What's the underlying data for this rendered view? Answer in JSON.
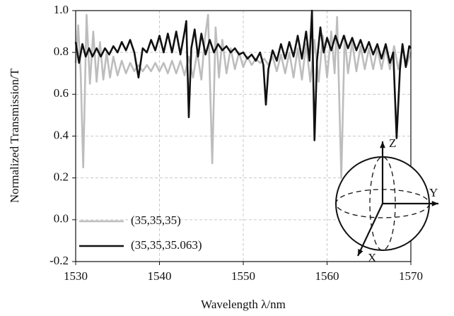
{
  "chart_data": {
    "type": "line",
    "x_label": "Wavelength λ/nm",
    "y_label": "Normalized Transmission/T",
    "xlim": [
      1530,
      1570
    ],
    "xticks": [
      1530,
      1540,
      1550,
      1560,
      1570
    ],
    "ylim": [
      -0.2,
      1.0
    ],
    "yticks": [
      -0.2,
      {
        "value": 0,
        "label": "0.0"
      },
      0.2,
      0.4,
      0.6,
      0.8,
      {
        "value": 1,
        "label": "1.0"
      }
    ],
    "grid": true,
    "legend": "lower left",
    "inset_axis_labels": [
      "X",
      "Y",
      "Z"
    ],
    "series": [
      {
        "name": "(35,35,35)",
        "color": "#bdbdbd",
        "x": [
          1530,
          1530.3,
          1530.6,
          1530.9,
          1531.3,
          1531.7,
          1532.1,
          1532.5,
          1532.9,
          1533.3,
          1533.7,
          1534.1,
          1534.5,
          1535,
          1535.5,
          1536,
          1536.5,
          1537,
          1537.5,
          1538,
          1538.5,
          1539,
          1539.5,
          1540,
          1540.5,
          1541,
          1541.5,
          1542,
          1542.5,
          1543,
          1543.5,
          1544,
          1544.5,
          1545,
          1545.4,
          1545.8,
          1546.3,
          1546.7,
          1547.1,
          1547.5,
          1548,
          1548.5,
          1549,
          1549.5,
          1550,
          1550.5,
          1551,
          1551.5,
          1552,
          1552.5,
          1553,
          1553.5,
          1554,
          1554.5,
          1555,
          1555.5,
          1556,
          1556.5,
          1557,
          1557.5,
          1558,
          1558.5,
          1559,
          1559.5,
          1560,
          1560.5,
          1560.9,
          1561.2,
          1561.7,
          1562.1,
          1562.5,
          1563,
          1563.5,
          1564,
          1564.5,
          1565,
          1565.5,
          1566,
          1566.5,
          1567,
          1567.5,
          1568,
          1568.5,
          1569,
          1569.5,
          1570
        ],
        "values": [
          0.75,
          0.93,
          0.7,
          0.25,
          0.98,
          0.65,
          0.9,
          0.66,
          0.85,
          0.67,
          0.8,
          0.68,
          0.78,
          0.69,
          0.76,
          0.7,
          0.75,
          0.71,
          0.74,
          0.71,
          0.74,
          0.71,
          0.75,
          0.71,
          0.75,
          0.7,
          0.76,
          0.7,
          0.76,
          0.69,
          0.78,
          0.68,
          0.8,
          0.67,
          0.86,
          0.98,
          0.27,
          0.92,
          0.68,
          0.86,
          0.7,
          0.82,
          0.72,
          0.8,
          0.73,
          0.78,
          0.74,
          0.77,
          0.75,
          0.77,
          0.74,
          0.78,
          0.71,
          0.79,
          0.7,
          0.8,
          0.68,
          0.82,
          0.67,
          0.84,
          0.66,
          0.86,
          0.66,
          0.88,
          0.68,
          0.9,
          0.7,
          0.97,
          0.2,
          0.88,
          0.7,
          0.85,
          0.71,
          0.83,
          0.72,
          0.82,
          0.72,
          0.82,
          0.72,
          0.82,
          0.72,
          0.83,
          0.72,
          0.82,
          0.74,
          0.8
        ]
      },
      {
        "name": "(35,35,35.063)",
        "color": "#111111",
        "x": [
          1530,
          1530.4,
          1530.8,
          1531.2,
          1531.6,
          1532,
          1532.5,
          1533,
          1533.5,
          1534,
          1534.5,
          1535,
          1535.5,
          1536,
          1536.5,
          1537,
          1537.5,
          1538,
          1538.5,
          1539,
          1539.5,
          1540,
          1540.5,
          1541,
          1541.5,
          1542,
          1542.5,
          1543,
          1543.2,
          1543.5,
          1543.8,
          1544.2,
          1544.6,
          1545,
          1545.5,
          1546,
          1546.5,
          1547,
          1547.5,
          1548,
          1548.5,
          1549,
          1549.5,
          1550,
          1550.5,
          1551,
          1551.5,
          1552,
          1552.4,
          1552.7,
          1553,
          1553.5,
          1554,
          1554.5,
          1555,
          1555.5,
          1556,
          1556.5,
          1557,
          1557.5,
          1557.9,
          1558.2,
          1558.5,
          1558.8,
          1559.2,
          1559.6,
          1560,
          1560.5,
          1561,
          1561.5,
          1562,
          1562.5,
          1563,
          1563.5,
          1564,
          1564.5,
          1565,
          1565.5,
          1566,
          1566.5,
          1567,
          1567.5,
          1567.9,
          1568.3,
          1568.7,
          1569,
          1569.4,
          1569.8,
          1570
        ],
        "values": [
          0.85,
          0.75,
          0.84,
          0.78,
          0.82,
          0.78,
          0.82,
          0.78,
          0.82,
          0.79,
          0.83,
          0.8,
          0.85,
          0.81,
          0.86,
          0.8,
          0.68,
          0.82,
          0.8,
          0.86,
          0.81,
          0.88,
          0.8,
          0.89,
          0.8,
          0.9,
          0.79,
          0.9,
          0.95,
          0.49,
          0.82,
          0.91,
          0.78,
          0.89,
          0.79,
          0.86,
          0.8,
          0.84,
          0.81,
          0.83,
          0.8,
          0.82,
          0.79,
          0.8,
          0.77,
          0.79,
          0.76,
          0.8,
          0.74,
          0.55,
          0.72,
          0.81,
          0.76,
          0.84,
          0.77,
          0.85,
          0.78,
          0.88,
          0.77,
          0.9,
          0.76,
          1.0,
          0.38,
          0.76,
          0.92,
          0.8,
          0.87,
          0.81,
          0.88,
          0.82,
          0.88,
          0.82,
          0.87,
          0.81,
          0.86,
          0.8,
          0.85,
          0.79,
          0.84,
          0.77,
          0.84,
          0.75,
          0.8,
          0.39,
          0.72,
          0.84,
          0.73,
          0.83,
          0.82
        ]
      }
    ]
  }
}
